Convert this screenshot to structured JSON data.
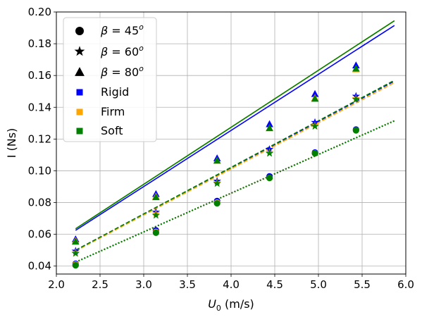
{
  "chart_data": {
    "type": "scatter",
    "title": "",
    "xlabel": {
      "main": "U",
      "sub": "0",
      "unit": " (m/s)"
    },
    "ylabel": "I (Ns)",
    "xlim": [
      2.0,
      6.0
    ],
    "ylim": [
      0.035,
      0.2
    ],
    "xticks": [
      2.0,
      2.5,
      3.0,
      3.5,
      4.0,
      4.5,
      5.0,
      5.5,
      6.0
    ],
    "xtick_labels": [
      "2.0",
      "2.5",
      "3.0",
      "3.5",
      "4.0",
      "4.5",
      "5.0",
      "5.5",
      "6.0"
    ],
    "yticks": [
      0.04,
      0.06,
      0.08,
      0.1,
      0.12,
      0.14,
      0.16,
      0.18,
      0.2
    ],
    "ytick_labels": [
      "0.04",
      "0.06",
      "0.08",
      "0.10",
      "0.12",
      "0.14",
      "0.16",
      "0.18",
      "0.20"
    ],
    "grid": true,
    "legend_placement": "top-left",
    "legend": [
      {
        "label": "β = 45°",
        "greek": "β",
        "eq": " = 45",
        "sup": "o",
        "marker": "circle",
        "color": "#000000"
      },
      {
        "label": "β = 60°",
        "greek": "β",
        "eq": " = 60",
        "sup": "o",
        "marker": "star",
        "color": "#000000"
      },
      {
        "label": "β = 80°",
        "greek": "β",
        "eq": " = 80",
        "sup": "o",
        "marker": "triangle",
        "color": "#000000"
      },
      {
        "label": "Rigid",
        "marker": "square",
        "color": "#0000ff"
      },
      {
        "label": "Firm",
        "marker": "square",
        "color": "#ffa500"
      },
      {
        "label": "Soft",
        "marker": "square",
        "color": "#008000"
      }
    ],
    "x": [
      2.22,
      3.14,
      3.84,
      4.44,
      4.96,
      5.43
    ],
    "series": [
      {
        "material": "Rigid",
        "angle": "45",
        "marker": "circle",
        "color": "#0000ff",
        "y": [
          0.0415,
          0.0625,
          0.081,
          0.0965,
          0.1115,
          0.126
        ]
      },
      {
        "material": "Firm",
        "angle": "45",
        "marker": "circle",
        "color": "#ffa500",
        "y": [
          0.041,
          0.0615,
          0.08,
          0.0955,
          0.111,
          0.1255
        ]
      },
      {
        "material": "Soft",
        "angle": "45",
        "marker": "circle",
        "color": "#008000",
        "y": [
          0.0405,
          0.061,
          0.0795,
          0.0955,
          0.111,
          0.1255
        ]
      },
      {
        "material": "Rigid",
        "angle": "60",
        "marker": "star",
        "color": "#0000ff",
        "y": [
          0.0495,
          0.074,
          0.0935,
          0.1135,
          0.1305,
          0.147
        ]
      },
      {
        "material": "Firm",
        "angle": "60",
        "marker": "star",
        "color": "#ffa500",
        "y": [
          0.0485,
          0.073,
          0.0925,
          0.1115,
          0.1285,
          0.1455
        ]
      },
      {
        "material": "Soft",
        "angle": "60",
        "marker": "star",
        "color": "#008000",
        "y": [
          0.048,
          0.072,
          0.092,
          0.111,
          0.128,
          0.145
        ]
      },
      {
        "material": "Rigid",
        "angle": "80",
        "marker": "triangle",
        "color": "#0000ff",
        "y": [
          0.057,
          0.0855,
          0.108,
          0.1295,
          0.1485,
          0.1665
        ]
      },
      {
        "material": "Firm",
        "angle": "80",
        "marker": "triangle",
        "color": "#ffa500",
        "y": [
          0.056,
          0.084,
          0.1065,
          0.127,
          0.146,
          0.164
        ]
      },
      {
        "material": "Soft",
        "angle": "80",
        "marker": "triangle",
        "color": "#008000",
        "y": [
          0.0555,
          0.0835,
          0.1065,
          0.127,
          0.1455,
          0.1645
        ]
      }
    ],
    "fit_lines": [
      {
        "angle": "80",
        "style": "solid",
        "color": "#0000ff",
        "x": [
          2.22,
          5.87
        ],
        "y": [
          0.0625,
          0.1915
        ]
      },
      {
        "angle": "80",
        "style": "solid",
        "color": "#ffa500",
        "x": [
          2.22,
          5.87
        ],
        "y": [
          0.0635,
          0.1945
        ]
      },
      {
        "angle": "80",
        "style": "solid",
        "color": "#008000",
        "x": [
          2.22,
          5.87
        ],
        "y": [
          0.0635,
          0.1945
        ]
      },
      {
        "angle": "60",
        "style": "dashed",
        "color": "#0000ff",
        "x": [
          2.22,
          5.87
        ],
        "y": [
          0.05,
          0.1565
        ]
      },
      {
        "angle": "60",
        "style": "dashed",
        "color": "#ffa500",
        "x": [
          2.22,
          5.87
        ],
        "y": [
          0.0495,
          0.1555
        ]
      },
      {
        "angle": "60",
        "style": "dashed",
        "color": "#008000",
        "x": [
          2.22,
          5.87
        ],
        "y": [
          0.05,
          0.157
        ]
      },
      {
        "angle": "45",
        "style": "dotted",
        "color": "#0000ff",
        "x": [
          2.22,
          5.87
        ],
        "y": [
          0.0425,
          0.1315
        ]
      },
      {
        "angle": "45",
        "style": "dotted",
        "color": "#ffa500",
        "x": [
          2.22,
          5.87
        ],
        "y": [
          0.0425,
          0.1315
        ]
      },
      {
        "angle": "45",
        "style": "dotted",
        "color": "#008000",
        "x": [
          2.22,
          5.87
        ],
        "y": [
          0.0425,
          0.1315
        ]
      }
    ]
  }
}
